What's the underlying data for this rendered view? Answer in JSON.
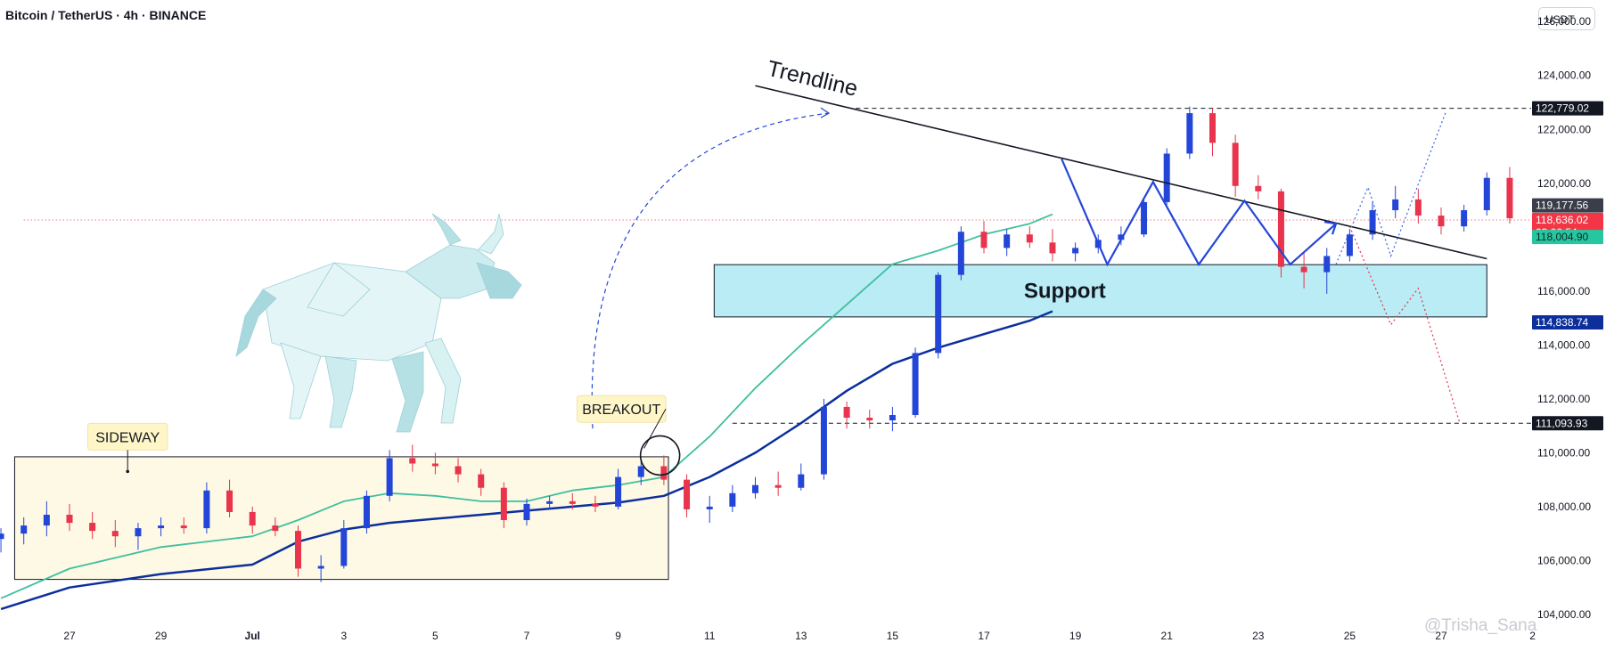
{
  "header": {
    "symbol_title": "Bitcoin / TetherUS · 4h · BINANCE",
    "currency": "USDT"
  },
  "watermark": "@Trisha_Sana",
  "colors": {
    "up": "#2446d8",
    "down": "#e8344c",
    "ema_fast": "#3fbf9f",
    "ema_slow": "#0c2f9c",
    "support_fill": "#b9ecf4",
    "sideway_fill": "#fdf9e4",
    "callout_fill": "#fff6c8",
    "pattern_line": "#2446d8"
  },
  "chart_data": {
    "type": "candlestick",
    "y_axis": {
      "range": [
        103800,
        126800
      ],
      "ticks": [
        "126,000.00",
        "124,000.00",
        "122,000.00",
        "120,000.00",
        "118,000.00",
        "116,000.00",
        "114,000.00",
        "112,000.00",
        "110,000.00",
        "108,000.00",
        "106,000.00",
        "104,000.00"
      ]
    },
    "x_axis": {
      "range": [
        0,
        33
      ],
      "ticks": [
        {
          "label": "27",
          "x": 0
        },
        {
          "label": "29",
          "x": 2
        },
        {
          "label": "Jul",
          "x": 4
        },
        {
          "label": "3",
          "x": 6
        },
        {
          "label": "5",
          "x": 8
        },
        {
          "label": "7",
          "x": 10
        },
        {
          "label": "9",
          "x": 12
        },
        {
          "label": "11",
          "x": 14
        },
        {
          "label": "13",
          "x": 16
        },
        {
          "label": "15",
          "x": 18
        },
        {
          "label": "17",
          "x": 20
        },
        {
          "label": "19",
          "x": 22
        },
        {
          "label": "21",
          "x": 24
        },
        {
          "label": "23",
          "x": 26
        },
        {
          "label": "25",
          "x": 28
        },
        {
          "label": "27",
          "x": 30
        },
        {
          "label": "2",
          "x": 32
        }
      ]
    },
    "price_tags": [
      {
        "label": "122,779.02",
        "value": 122779,
        "bg": "#131722",
        "fg": "#ffffff"
      },
      {
        "label": "119,177.56",
        "value": 119177,
        "bg": "#3a3e4a",
        "fg": "#ffffff"
      },
      {
        "label": "118,636.02",
        "sublabel": "03:00:54",
        "value": 118636,
        "bg": "#f23645",
        "fg": "#ffffff"
      },
      {
        "label": "118,004.90",
        "value": 118005,
        "bg": "#26c6a0",
        "fg": "#0c2a22"
      },
      {
        "label": "114,838.74",
        "value": 114839,
        "bg": "#0c2f9c",
        "fg": "#ffffff"
      },
      {
        "label": "111,093.93",
        "value": 111094,
        "bg": "#131722",
        "fg": "#ffffff"
      }
    ],
    "horizontal_levels": [
      {
        "value": 122779,
        "from_x": 17.2,
        "style": "dashed",
        "color": "#131722"
      },
      {
        "value": 111094,
        "from_x": 14.5,
        "style": "dashed",
        "color": "#131722"
      },
      {
        "value": 118636,
        "from_x": -1,
        "style": "dotted",
        "color": "#e8344c"
      }
    ],
    "zones": [
      {
        "label": "Support",
        "x": [
          14.1,
          31.0
        ],
        "y": [
          115040,
          116980
        ]
      },
      {
        "label": "",
        "x": [
          -1.2,
          13.1
        ],
        "y": [
          105300,
          109850
        ]
      }
    ],
    "annotations": [
      {
        "label": "SIDEWAY",
        "x": 0.4,
        "value": 110100
      },
      {
        "label": "BREAKOUT",
        "x": 11.1,
        "value": 111130
      }
    ],
    "trendline": {
      "label": "Trendline",
      "from": [
        15.0,
        123620
      ],
      "to": [
        31.0,
        117200
      ]
    },
    "breakout_circle": {
      "x": 12.8,
      "value": 109900
    },
    "zigzag": [
      [
        21.7,
        120900
      ],
      [
        22.7,
        116990
      ],
      [
        23.7,
        120050
      ],
      [
        24.7,
        116990
      ],
      [
        25.7,
        119350
      ],
      [
        26.7,
        116990
      ],
      [
        27.7,
        118500
      ]
    ],
    "projection_up": [
      [
        27.7,
        116990
      ],
      [
        28.4,
        119850
      ],
      [
        28.9,
        117300
      ],
      [
        30.1,
        122630
      ]
    ],
    "projection_down": [
      [
        28.0,
        118400
      ],
      [
        28.9,
        114750
      ],
      [
        29.5,
        116100
      ],
      [
        30.4,
        111150
      ]
    ],
    "ema_fast": [
      [
        -1.5,
        104600
      ],
      [
        0,
        105700
      ],
      [
        2,
        106500
      ],
      [
        4,
        106900
      ],
      [
        5,
        107500
      ],
      [
        6,
        108200
      ],
      [
        7,
        108500
      ],
      [
        8,
        108400
      ],
      [
        9,
        108200
      ],
      [
        10,
        108200
      ],
      [
        11,
        108600
      ],
      [
        12,
        108800
      ],
      [
        13,
        109100
      ],
      [
        14,
        110600
      ],
      [
        15,
        112400
      ],
      [
        16,
        114000
      ],
      [
        17,
        115500
      ],
      [
        18,
        117000
      ],
      [
        19,
        117500
      ],
      [
        20,
        118100
      ],
      [
        21,
        118500
      ],
      [
        21.5,
        118850
      ]
    ],
    "ema_slow": [
      [
        -1.5,
        104200
      ],
      [
        0,
        105000
      ],
      [
        2,
        105500
      ],
      [
        4,
        105850
      ],
      [
        5,
        106700
      ],
      [
        6,
        107150
      ],
      [
        7,
        107400
      ],
      [
        8,
        107550
      ],
      [
        9,
        107700
      ],
      [
        10,
        107850
      ],
      [
        11,
        108000
      ],
      [
        12,
        108150
      ],
      [
        13,
        108400
      ],
      [
        14,
        109100
      ],
      [
        15,
        110000
      ],
      [
        16,
        111100
      ],
      [
        17,
        112300
      ],
      [
        18,
        113300
      ],
      [
        19,
        113900
      ],
      [
        20,
        114400
      ],
      [
        21,
        114900
      ],
      [
        21.5,
        115250
      ]
    ],
    "candles": [
      [
        -1.5,
        106800,
        107200,
        106300,
        107000
      ],
      [
        -1.0,
        107000,
        107600,
        106600,
        107300
      ],
      [
        -0.5,
        107300,
        108200,
        106900,
        107700
      ],
      [
        0,
        107700,
        108100,
        107100,
        107400
      ],
      [
        0.5,
        107400,
        107800,
        106800,
        107100
      ],
      [
        1.0,
        107100,
        107500,
        106500,
        106900
      ],
      [
        1.5,
        106900,
        107400,
        106400,
        107200
      ],
      [
        2.0,
        107200,
        107600,
        106900,
        107300
      ],
      [
        2.5,
        107300,
        107600,
        107000,
        107200
      ],
      [
        3.0,
        107200,
        108900,
        107000,
        108600
      ],
      [
        3.5,
        108600,
        109000,
        107600,
        107800
      ],
      [
        4.0,
        107800,
        108000,
        107000,
        107300
      ],
      [
        4.5,
        107300,
        107600,
        106900,
        107100
      ],
      [
        5.0,
        107100,
        107300,
        105400,
        105700
      ],
      [
        5.5,
        105700,
        106200,
        105200,
        105800
      ],
      [
        6.0,
        105800,
        107500,
        105700,
        107200
      ],
      [
        6.5,
        107200,
        108600,
        107000,
        108400
      ],
      [
        7.0,
        108400,
        110100,
        108200,
        109800
      ],
      [
        7.5,
        109800,
        110300,
        109300,
        109600
      ],
      [
        8.0,
        109600,
        110000,
        109200,
        109500
      ],
      [
        8.5,
        109500,
        109800,
        108900,
        109200
      ],
      [
        9.0,
        109200,
        109400,
        108400,
        108700
      ],
      [
        9.5,
        108700,
        108900,
        107200,
        107500
      ],
      [
        10.0,
        107500,
        108300,
        107300,
        108100
      ],
      [
        10.5,
        108100,
        108400,
        107900,
        108200
      ],
      [
        11.0,
        108200,
        108500,
        107900,
        108100
      ],
      [
        11.5,
        108100,
        108400,
        107800,
        108000
      ],
      [
        12.0,
        108000,
        109400,
        107900,
        109100
      ],
      [
        12.5,
        109100,
        109700,
        108800,
        109500
      ],
      [
        13.0,
        109500,
        109900,
        108800,
        109000
      ],
      [
        13.5,
        109000,
        109200,
        107600,
        107900
      ],
      [
        14.0,
        107900,
        108400,
        107400,
        108000
      ],
      [
        14.5,
        108000,
        108800,
        107800,
        108500
      ],
      [
        15.0,
        108500,
        109100,
        108300,
        108800
      ],
      [
        15.5,
        108800,
        109300,
        108400,
        108700
      ],
      [
        16.0,
        108700,
        109600,
        108600,
        109200
      ],
      [
        16.5,
        109200,
        112000,
        109000,
        111700
      ],
      [
        17.0,
        111700,
        111900,
        110900,
        111300
      ],
      [
        17.5,
        111300,
        111600,
        110900,
        111200
      ],
      [
        18.0,
        111200,
        111700,
        110800,
        111400
      ],
      [
        18.5,
        111400,
        113900,
        111300,
        113700
      ],
      [
        19.0,
        113700,
        116700,
        113500,
        116600
      ],
      [
        19.5,
        116600,
        118400,
        116400,
        118200
      ],
      [
        20.0,
        118200,
        118600,
        117400,
        117600
      ],
      [
        20.5,
        117600,
        118300,
        117300,
        118100
      ],
      [
        21.0,
        118100,
        118400,
        117600,
        117800
      ],
      [
        21.5,
        117800,
        118300,
        117100,
        117400
      ],
      [
        22.0,
        117400,
        117800,
        117100,
        117600
      ],
      [
        22.5,
        117600,
        118100,
        117400,
        117900
      ],
      [
        23.0,
        117900,
        118400,
        117700,
        118100
      ],
      [
        23.5,
        118100,
        119500,
        118000,
        119300
      ],
      [
        24.0,
        119300,
        121300,
        119200,
        121100
      ],
      [
        24.5,
        121100,
        122850,
        120900,
        122600
      ],
      [
        25.0,
        122600,
        122780,
        121000,
        121500
      ],
      [
        25.5,
        121500,
        121800,
        119500,
        119900
      ],
      [
        26.0,
        119900,
        120300,
        119400,
        119700
      ],
      [
        26.5,
        119700,
        119800,
        116500,
        116900
      ],
      [
        27.0,
        116900,
        117400,
        116100,
        116700
      ],
      [
        27.5,
        116700,
        117600,
        115900,
        117300
      ],
      [
        28.0,
        117300,
        118300,
        117100,
        118100
      ],
      [
        28.5,
        118100,
        119300,
        117900,
        119000
      ],
      [
        29.0,
        119000,
        119900,
        118700,
        119400
      ],
      [
        29.5,
        119400,
        119800,
        118500,
        118800
      ],
      [
        30.0,
        118800,
        119100,
        118100,
        118400
      ],
      [
        30.5,
        118400,
        119200,
        118200,
        119000
      ],
      [
        31.0,
        119000,
        120400,
        118800,
        120200
      ],
      [
        31.5,
        120200,
        120600,
        118500,
        118700
      ]
    ]
  }
}
